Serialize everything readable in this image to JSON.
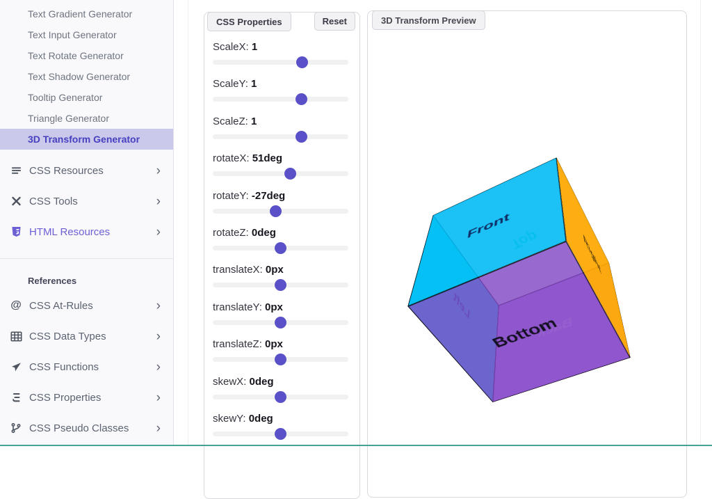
{
  "sidebar": {
    "generator_items": [
      {
        "label": "Text Gradient Generator",
        "active": false
      },
      {
        "label": "Text Input Generator",
        "active": false
      },
      {
        "label": "Text Rotate Generator",
        "active": false
      },
      {
        "label": "Text Shadow Generator",
        "active": false
      },
      {
        "label": "Tooltip Generator",
        "active": false
      },
      {
        "label": "Triangle Generator",
        "active": false
      },
      {
        "label": "3D Transform Generator",
        "active": true
      }
    ],
    "sections": [
      {
        "label": "CSS Resources",
        "icon": "list-icon",
        "accent": false
      },
      {
        "label": "CSS Tools",
        "icon": "tools-icon",
        "accent": false
      },
      {
        "label": "HTML Resources",
        "icon": "html5-icon",
        "accent": true
      }
    ],
    "references_heading": "References",
    "reference_items": [
      {
        "label": "CSS At-Rules",
        "icon": "at-icon"
      },
      {
        "label": "CSS Data Types",
        "icon": "table-icon"
      },
      {
        "label": "CSS Functions",
        "icon": "function-icon"
      },
      {
        "label": "CSS Properties",
        "icon": "css-brackets-icon"
      },
      {
        "label": "CSS Pseudo Classes",
        "icon": "branch-icon"
      }
    ],
    "chevron_glyph": "›"
  },
  "controls": {
    "panel_title": "CSS Properties",
    "reset_label": "Reset",
    "sliders": [
      {
        "name": "ScaleX:",
        "value": "1",
        "fraction": 0.66
      },
      {
        "name": "ScaleY:",
        "value": "1",
        "fraction": 0.655
      },
      {
        "name": "ScaleZ:",
        "value": "1",
        "fraction": 0.655
      },
      {
        "name": "rotateX:",
        "value": "51deg",
        "fraction": 0.5708
      },
      {
        "name": "rotateY:",
        "value": "-27deg",
        "fraction": 0.4625
      },
      {
        "name": "rotateZ:",
        "value": "0deg",
        "fraction": 0.5
      },
      {
        "name": "translateX:",
        "value": "0px",
        "fraction": 0.5
      },
      {
        "name": "translateY:",
        "value": "0px",
        "fraction": 0.5
      },
      {
        "name": "translateZ:",
        "value": "0px",
        "fraction": 0.5
      },
      {
        "name": "skewX:",
        "value": "0deg",
        "fraction": 0.5
      },
      {
        "name": "skewY:",
        "value": "0deg",
        "fraction": 0.5
      }
    ]
  },
  "preview": {
    "panel_title": "3D Transform Preview",
    "cube_transform": "scaleX(1) scaleY(1) scaleZ(1) rotateX(51deg) rotateY(-27deg) rotateZ(0deg) translateX(0px) translateY(0px) translateZ(0px) skewX(0deg) skewY(0deg)",
    "faces": [
      {
        "name": "front",
        "label": "Front",
        "bg": "rgba(0,185,245,0.88)",
        "color": "rgba(12,28,84,0.9)"
      },
      {
        "name": "back",
        "label": "Back",
        "bg": "rgba(148,88,220,0.55)",
        "color": "rgba(224,206,250,0.95)"
      },
      {
        "name": "right",
        "label": "Right",
        "bg": "rgba(255,168,0,0.93)",
        "color": "rgba(40,30,10,0.85)"
      },
      {
        "name": "left",
        "label": "Left",
        "bg": "rgba(0,230,235,0.9)",
        "color": "rgba(20,50,90,0.6)"
      },
      {
        "name": "top",
        "label": "Top",
        "bg": "rgba(0,255,200,0.1)",
        "color": "rgba(23,217,172,0.85)"
      },
      {
        "name": "bottom",
        "label": "Bottom",
        "bg": "rgba(130,64,196,0.78)",
        "color": "rgba(10,10,20,0.92)"
      }
    ]
  },
  "theme": {
    "accent": "#5a51c8",
    "active_item_bg": "#cac8eb",
    "active_item_color": "#4840bf",
    "slider_thumb": "#5a51c8",
    "slider_track": "#f1f1f2",
    "tab_bg": "#f2f2f5",
    "bottom_bar": "#43a497"
  }
}
